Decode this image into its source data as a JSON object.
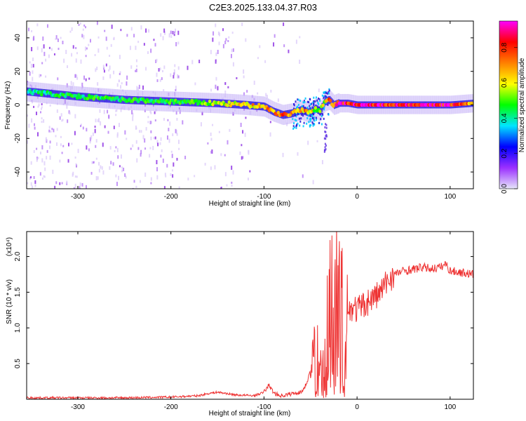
{
  "title": "C2E3.2025.133.04.37.R03",
  "chart_data": [
    {
      "type": "heatmap",
      "title": "C2E3.2025.133.04.37.R03",
      "xlabel": "Height of straight line (km)",
      "ylabel": "Frequency (Hz)",
      "xlim": [
        -355,
        125
      ],
      "ylim": [
        -50,
        50
      ],
      "x_ticks": [
        -300,
        -200,
        -100,
        0,
        100
      ],
      "y_ticks": [
        -40,
        -20,
        0,
        20,
        40
      ],
      "colorbar": {
        "label": "Normalized spectral amplitude",
        "range": [
          0.0,
          0.95
        ],
        "ticks": [
          0.0,
          0.2,
          0.4,
          0.6,
          0.8
        ],
        "tick_labels": [
          "0.0",
          "0.2",
          "0.4",
          "0.6",
          "0.8"
        ],
        "colormap": [
          "#e6e6fa",
          "#9b30ff",
          "#0000ff",
          "#00e5ff",
          "#00ff00",
          "#ffff00",
          "#ff8000",
          "#ff0000",
          "#ff00ff"
        ]
      },
      "ridge": {
        "name": "",
        "x": [
          -355,
          -300,
          -250,
          -200,
          -150,
          -120,
          -100,
          -90,
          -80,
          -70,
          -60,
          -50,
          -45,
          -40,
          -35,
          -30,
          -25,
          -20,
          -10,
          0,
          50,
          100,
          125
        ],
        "y": [
          8,
          5,
          3,
          2,
          1,
          0,
          -1,
          -4,
          -6,
          -5,
          -3,
          -5,
          -2,
          -4,
          2,
          3,
          0,
          1,
          1,
          0,
          0,
          0,
          1
        ],
        "peak_amplitude": [
          0.45,
          0.5,
          0.5,
          0.5,
          0.6,
          0.7,
          0.75,
          0.8,
          0.8,
          0.8,
          0.75,
          0.7,
          0.6,
          0.6,
          0.65,
          0.9,
          0.85,
          0.95,
          0.95,
          0.95,
          0.95,
          0.95,
          0.7
        ]
      }
    },
    {
      "type": "line",
      "xlabel": "Height of straight line (km)",
      "ylabel": "SNR (10 * v/v)",
      "y_multiplier": "(x10⁴)",
      "xlim": [
        -355,
        125
      ],
      "ylim": [
        0,
        2.35
      ],
      "x_ticks": [
        -300,
        -200,
        -100,
        0,
        100
      ],
      "y_ticks": [
        0.5,
        1.0,
        1.5,
        2.0
      ],
      "y_tick_labels": [
        "0.5",
        "1.0",
        "1.5",
        "2.0"
      ],
      "series": [
        {
          "name": "",
          "color": "#ee3333",
          "x": [
            -355,
            -300,
            -250,
            -200,
            -170,
            -160,
            -150,
            -130,
            -110,
            -100,
            -95,
            -90,
            -85,
            -80,
            -70,
            -60,
            -55,
            -50,
            -45,
            -40,
            -35,
            -30,
            -27,
            -25,
            -22,
            -20,
            -18,
            -15,
            -12,
            -10,
            -5,
            0,
            5,
            10,
            15,
            20,
            25,
            30,
            35,
            40,
            50,
            60,
            70,
            80,
            90,
            95,
            100,
            110,
            125
          ],
          "y": [
            0.02,
            0.02,
            0.02,
            0.03,
            0.05,
            0.08,
            0.1,
            0.06,
            0.05,
            0.1,
            0.2,
            0.1,
            0.06,
            0.05,
            0.08,
            0.1,
            0.2,
            0.4,
            0.6,
            0.8,
            0.7,
            1.3,
            1.8,
            1.2,
            1.9,
            1.0,
            1.4,
            1.1,
            1.3,
            1.2,
            1.3,
            1.25,
            1.3,
            1.35,
            1.4,
            1.45,
            1.5,
            1.6,
            1.7,
            1.75,
            1.8,
            1.82,
            1.85,
            1.83,
            1.85,
            1.9,
            1.8,
            1.78,
            1.75
          ]
        }
      ]
    }
  ]
}
